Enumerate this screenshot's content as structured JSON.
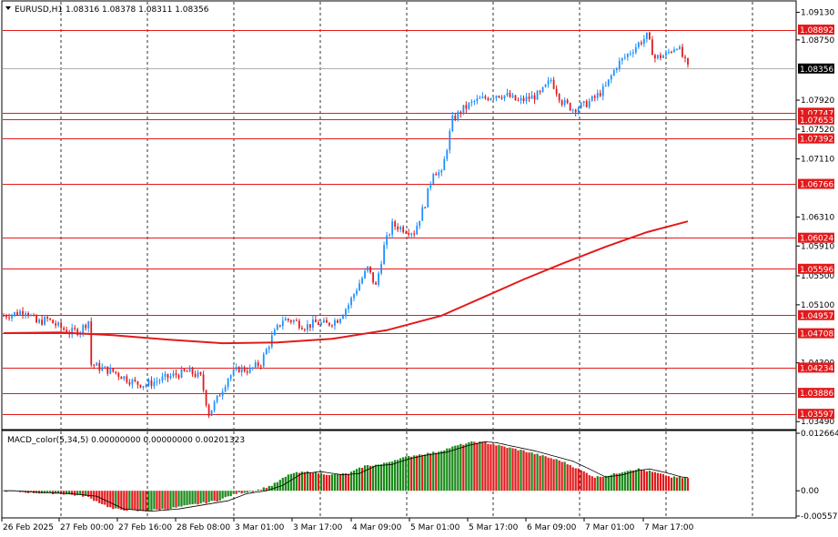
{
  "symbol_header": "EURUSD,H1  1.08316 1.08378 1.08311 1.08356",
  "indicator_header": "MACD_color(5,34,5) 0.00000000 0.00000000 0.00201323",
  "colors": {
    "bull": "#1e90ff",
    "bear": "#e31a1c",
    "ma": "#e31a1c",
    "level": "#e31a1c",
    "macd_up": "#1a8a1a",
    "macd_down": "#e31a1c",
    "grid": "#000000"
  },
  "chart_data": [
    {
      "type": "candlestick",
      "title": "EURUSD,H1",
      "ohlc_header": "1.08316 1.08378 1.08311 1.08356",
      "y_ticks": [
        "1.09130",
        "1.08750",
        "1.07920",
        "1.07520",
        "1.07110",
        "1.06310",
        "1.05910",
        "1.05500",
        "1.05100",
        "1.04300",
        "1.03490"
      ],
      "price_labels": [
        "1.08892",
        "1.07747",
        "1.07653",
        "1.07392",
        "1.06766",
        "1.06024",
        "1.05596",
        "1.04957",
        "1.04708",
        "1.04234",
        "1.03886",
        "1.03597"
      ],
      "current_price_label": "1.08356",
      "x_ticks": [
        "26 Feb 2025",
        "27 Feb 00:00",
        "27 Feb 16:00",
        "28 Feb 08:00",
        "3 Mar 01:00",
        "3 Mar 17:00",
        "4 Mar 09:00",
        "5 Mar 01:00",
        "5 Mar 17:00",
        "6 Mar 09:00",
        "7 Mar 01:00",
        "7 Mar 17:00"
      ],
      "ylim": [
        1.0343,
        1.0925
      ],
      "close_path": [
        [
          0,
          1.0495
        ],
        [
          4,
          1.0498
        ],
        [
          8,
          1.0503
        ],
        [
          12,
          1.0485
        ],
        [
          16,
          1.049
        ],
        [
          20,
          1.048
        ],
        [
          24,
          1.0472
        ],
        [
          28,
          1.0475
        ],
        [
          31,
          1.0488
        ],
        [
          32,
          1.0428
        ],
        [
          36,
          1.0422
        ],
        [
          40,
          1.0418
        ],
        [
          44,
          1.041
        ],
        [
          48,
          1.0402
        ],
        [
          52,
          1.04
        ],
        [
          56,
          1.0405
        ],
        [
          60,
          1.041
        ],
        [
          64,
          1.0415
        ],
        [
          68,
          1.0418
        ],
        [
          72,
          1.041
        ],
        [
          75,
          1.036
        ],
        [
          78,
          1.038
        ],
        [
          82,
          1.041
        ],
        [
          86,
          1.0422
        ],
        [
          90,
          1.042
        ],
        [
          94,
          1.043
        ],
        [
          98,
          1.0465
        ],
        [
          102,
          1.049
        ],
        [
          106,
          1.0488
        ],
        [
          110,
          1.048
        ],
        [
          114,
          1.0485
        ],
        [
          118,
          1.0483
        ],
        [
          122,
          1.049
        ],
        [
          126,
          1.051
        ],
        [
          130,
          1.054
        ],
        [
          133,
          1.056
        ],
        [
          136,
          1.0535
        ],
        [
          139,
          1.059
        ],
        [
          142,
          1.062
        ],
        [
          146,
          1.0615
        ],
        [
          150,
          1.061
        ],
        [
          154,
          1.065
        ],
        [
          157,
          1.0695
        ],
        [
          160,
          1.069
        ],
        [
          164,
          1.0765
        ],
        [
          168,
          1.078
        ],
        [
          172,
          1.079
        ],
        [
          176,
          1.0795
        ],
        [
          180,
          1.08
        ],
        [
          184,
          1.0798
        ],
        [
          188,
          1.079
        ],
        [
          192,
          1.0795
        ],
        [
          196,
          1.08
        ],
        [
          200,
          1.082
        ],
        [
          204,
          1.079
        ],
        [
          208,
          1.078
        ],
        [
          212,
          1.0785
        ],
        [
          216,
          1.0795
        ],
        [
          220,
          1.081
        ],
        [
          224,
          1.084
        ],
        [
          228,
          1.0855
        ],
        [
          232,
          1.087
        ],
        [
          235,
          1.088
        ],
        [
          238,
          1.085
        ],
        [
          242,
          1.0855
        ],
        [
          246,
          1.0868
        ],
        [
          250,
          1.0836
        ]
      ],
      "ma_path": [
        [
          0,
          1.0471
        ],
        [
          20,
          1.0472
        ],
        [
          40,
          1.0468
        ],
        [
          60,
          1.0462
        ],
        [
          80,
          1.0457
        ],
        [
          100,
          1.0458
        ],
        [
          120,
          1.0463
        ],
        [
          140,
          1.0475
        ],
        [
          160,
          1.0495
        ],
        [
          175,
          1.052
        ],
        [
          190,
          1.0545
        ],
        [
          205,
          1.0568
        ],
        [
          220,
          1.059
        ],
        [
          235,
          1.061
        ],
        [
          250,
          1.0625
        ]
      ],
      "bar_count": 251
    },
    {
      "type": "bar",
      "title": "MACD_color(5,34,5)",
      "values_header": "0.00000000 0.00000000 0.00201323",
      "y_ticks": [
        "0.0126649",
        "0.00",
        "-0.005570"
      ],
      "ylim": [
        -0.00557,
        0.0126649
      ],
      "histogram_path": [
        [
          0,
          0.0
        ],
        [
          10,
          -0.0004
        ],
        [
          20,
          -0.0006
        ],
        [
          30,
          -0.0012
        ],
        [
          40,
          -0.004
        ],
        [
          50,
          -0.0045
        ],
        [
          60,
          -0.004
        ],
        [
          70,
          -0.003
        ],
        [
          78,
          -0.0022
        ],
        [
          85,
          -0.0006
        ],
        [
          92,
          0.0
        ],
        [
          98,
          0.0012
        ],
        [
          105,
          0.0038
        ],
        [
          112,
          0.0042
        ],
        [
          120,
          0.0035
        ],
        [
          126,
          0.0038
        ],
        [
          132,
          0.0055
        ],
        [
          138,
          0.0058
        ],
        [
          144,
          0.007
        ],
        [
          150,
          0.0078
        ],
        [
          158,
          0.0085
        ],
        [
          166,
          0.01
        ],
        [
          172,
          0.0108
        ],
        [
          176,
          0.0106
        ],
        [
          182,
          0.0098
        ],
        [
          190,
          0.0088
        ],
        [
          198,
          0.0075
        ],
        [
          204,
          0.0065
        ],
        [
          210,
          0.0048
        ],
        [
          216,
          0.003
        ],
        [
          222,
          0.0035
        ],
        [
          228,
          0.0045
        ],
        [
          232,
          0.0048
        ],
        [
          238,
          0.004
        ],
        [
          244,
          0.003
        ],
        [
          250,
          0.0028
        ]
      ]
    }
  ]
}
